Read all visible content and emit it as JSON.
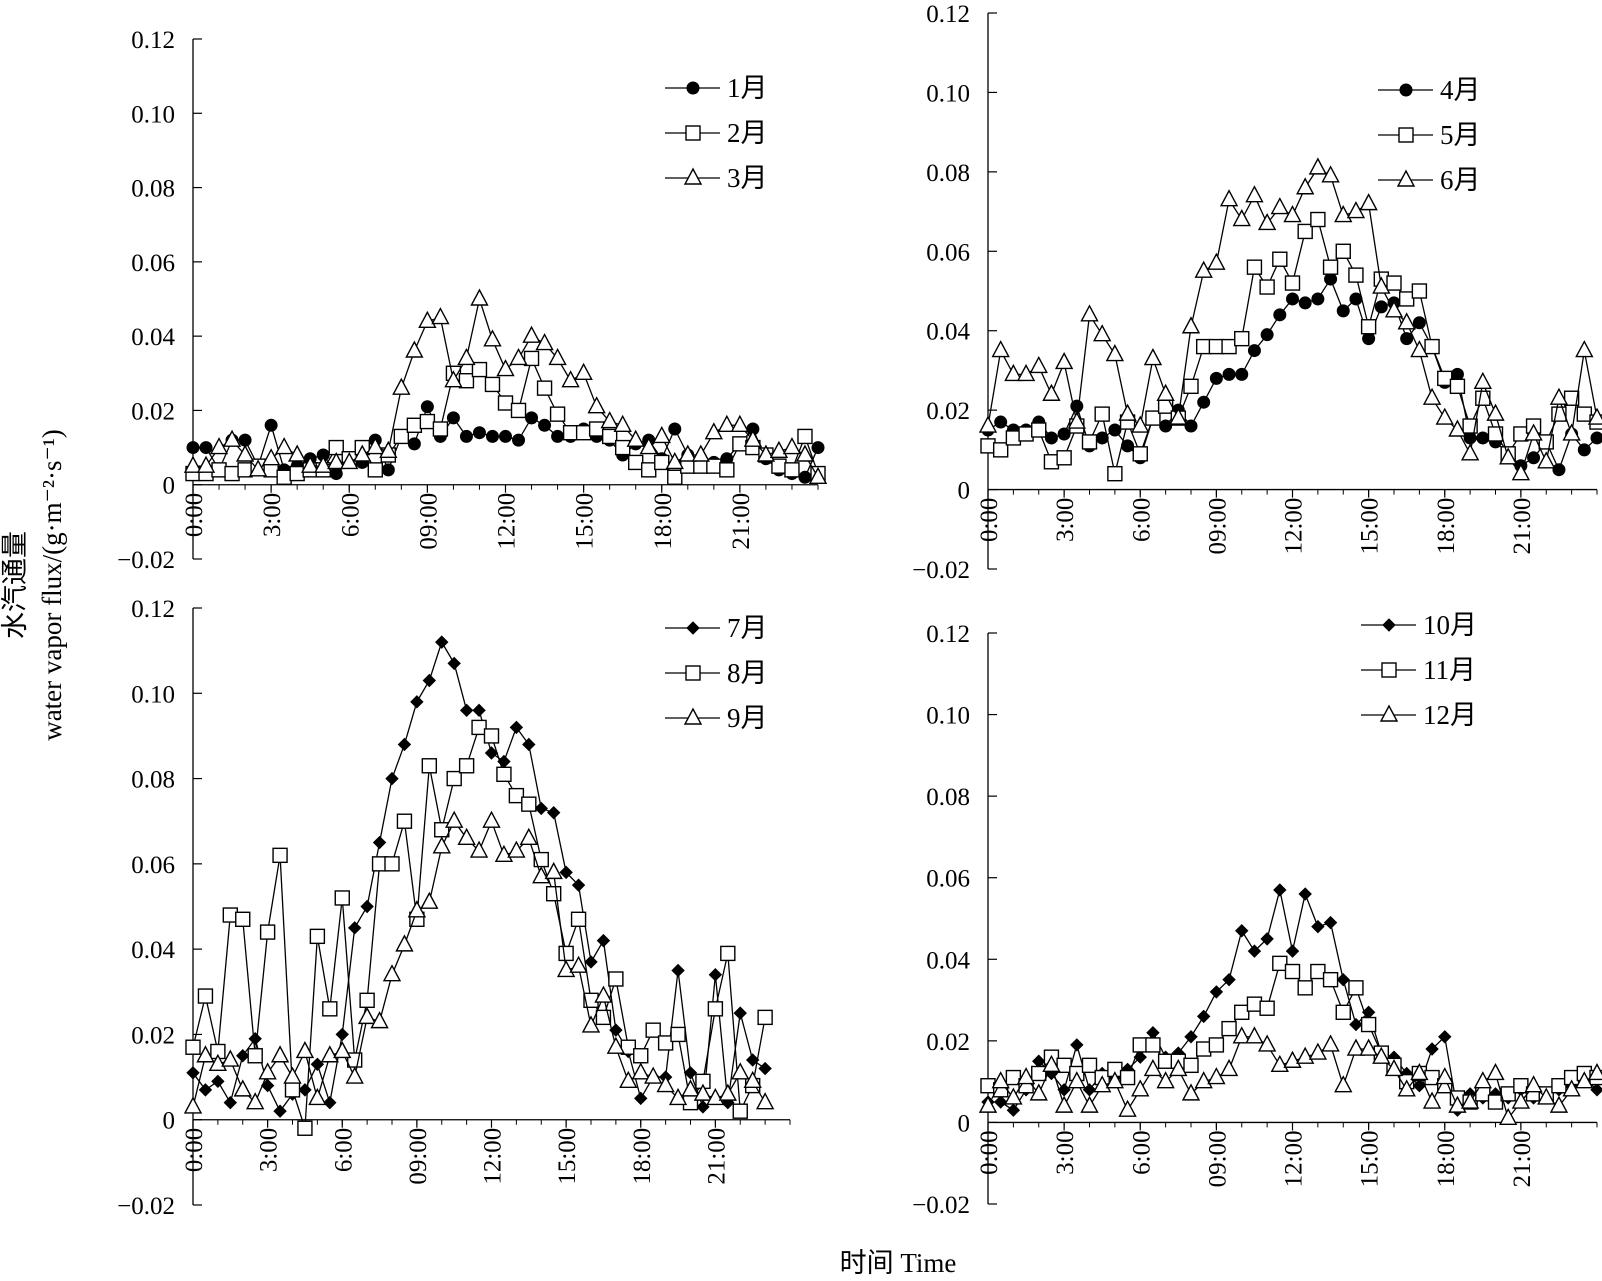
{
  "figure": {
    "ylabel_line1": "水汽通量",
    "ylabel_line2": "water vapor  flux/(g·m⁻²·s⁻¹)",
    "xlabel": "时间 Time"
  },
  "chart_data": [
    {
      "type": "line",
      "panel": "top-left",
      "ylim": [
        -0.02,
        0.12
      ],
      "yticks": [
        "0.12",
        "0.10",
        "0.08",
        "0.06",
        "0.04",
        "0.02",
        "0",
        "−0.02"
      ],
      "xticks": [
        "0:00",
        "3:00",
        "6:00",
        "09:00",
        "12:00",
        "15:00",
        "18:00",
        "21:00"
      ],
      "legend": "top-right",
      "series": [
        {
          "name": "1月",
          "marker": "circle",
          "values": [
            0.01,
            0.01,
            0.004,
            0.012,
            0.012,
            0.005,
            0.016,
            0.004,
            0.005,
            0.007,
            0.008,
            0.003,
            0.006,
            0.006,
            0.012,
            0.004,
            0.013,
            0.011,
            0.021,
            0.013,
            0.018,
            0.013,
            0.014,
            0.013,
            0.013,
            0.012,
            0.018,
            0.016,
            0.013,
            0.013,
            0.015,
            0.013,
            0.012,
            0.008,
            0.011,
            0.012,
            0.007,
            0.015,
            0.008,
            0.007,
            0.006,
            0.007,
            0.011,
            0.015,
            0.007,
            0.004,
            0.003,
            0.002,
            0.01
          ]
        },
        {
          "name": "2月",
          "marker": "square",
          "values": [
            0.003,
            0.003,
            0.004,
            0.003,
            0.004,
            0.005,
            0.004,
            0.002,
            0.003,
            0.004,
            0.004,
            0.01,
            0.007,
            0.01,
            0.004,
            0.008,
            0.013,
            0.016,
            0.017,
            0.015,
            0.03,
            0.028,
            0.031,
            0.027,
            0.022,
            0.02,
            0.034,
            0.026,
            0.019,
            0.014,
            0.014,
            0.015,
            0.013,
            0.01,
            0.006,
            0.004,
            0.006,
            0.002,
            0.005,
            0.005,
            0.005,
            0.004,
            0.011,
            0.01,
            0.008,
            0.005,
            0.004,
            0.013,
            0.003
          ]
        },
        {
          "name": "3月",
          "marker": "triangle",
          "values": [
            0.005,
            0.005,
            0.01,
            0.012,
            0.008,
            0.004,
            0.007,
            0.01,
            0.008,
            0.005,
            0.005,
            0.006,
            0.006,
            0.008,
            0.01,
            0.009,
            0.026,
            0.036,
            0.044,
            0.045,
            0.028,
            0.034,
            0.05,
            0.039,
            0.031,
            0.034,
            0.04,
            0.038,
            0.034,
            0.028,
            0.03,
            0.021,
            0.017,
            0.016,
            0.012,
            0.01,
            0.013,
            0.006,
            0.008,
            0.008,
            0.014,
            0.016,
            0.016,
            0.012,
            0.008,
            0.009,
            0.01,
            0.008,
            0.002
          ]
        }
      ]
    },
    {
      "type": "line",
      "panel": "top-right",
      "ylim": [
        -0.02,
        0.12
      ],
      "yticks": [
        "0.12",
        "0.10",
        "0.08",
        "0.06",
        "0.04",
        "0.02",
        "0",
        "−0.02"
      ],
      "xticks": [
        "0:00",
        "3:00",
        "6:00",
        "09:00",
        "12:00",
        "15:00",
        "18:00",
        "21:00"
      ],
      "legend": "top-right",
      "series": [
        {
          "name": "4月",
          "marker": "circle",
          "values": [
            0.015,
            0.017,
            0.015,
            0.015,
            0.017,
            0.013,
            0.014,
            0.021,
            0.011,
            0.013,
            0.015,
            0.011,
            0.008,
            0.018,
            0.016,
            0.02,
            0.016,
            0.022,
            0.028,
            0.029,
            0.029,
            0.035,
            0.039,
            0.044,
            0.048,
            0.047,
            0.048,
            0.053,
            0.045,
            0.048,
            0.038,
            0.046,
            0.047,
            0.038,
            0.042,
            0.036,
            0.027,
            0.029,
            0.013,
            0.013,
            0.012,
            0.009,
            0.006,
            0.008,
            0.012,
            0.005,
            0.014,
            0.01,
            0.013
          ]
        },
        {
          "name": "5月",
          "marker": "square",
          "values": [
            0.011,
            0.01,
            0.013,
            0.014,
            0.015,
            0.007,
            0.008,
            0.016,
            0.012,
            0.019,
            0.004,
            0.017,
            0.009,
            0.018,
            0.021,
            0.018,
            0.026,
            0.036,
            0.036,
            0.036,
            0.038,
            0.056,
            0.051,
            0.058,
            0.052,
            0.065,
            0.068,
            0.056,
            0.06,
            0.054,
            0.041,
            0.053,
            0.052,
            0.048,
            0.05,
            0.036,
            0.028,
            0.026,
            0.016,
            0.023,
            0.014,
            0.009,
            0.014,
            0.016,
            0.012,
            0.019,
            0.023,
            0.019,
            0.017
          ]
        },
        {
          "name": "6月",
          "marker": "triangle",
          "values": [
            0.016,
            0.035,
            0.029,
            0.029,
            0.031,
            0.024,
            0.032,
            0.017,
            0.044,
            0.039,
            0.034,
            0.019,
            0.016,
            0.033,
            0.024,
            0.018,
            0.041,
            0.055,
            0.057,
            0.073,
            0.068,
            0.074,
            0.067,
            0.071,
            0.069,
            0.076,
            0.081,
            0.079,
            0.069,
            0.07,
            0.072,
            0.051,
            0.045,
            0.042,
            0.035,
            0.023,
            0.018,
            0.015,
            0.009,
            0.027,
            0.019,
            0.008,
            0.004,
            0.014,
            0.007,
            0.023,
            0.014,
            0.035,
            0.018
          ]
        }
      ]
    },
    {
      "type": "line",
      "panel": "bottom-left",
      "ylim": [
        -0.02,
        0.12
      ],
      "yticks": [
        "0.12",
        "0.10",
        "0.08",
        "0.06",
        "0.04",
        "0.02",
        "0",
        "−0.02"
      ],
      "xticks": [
        "0:00",
        "3:00",
        "6:00",
        "09:00",
        "12:00",
        "15:00",
        "18:00",
        "21:00"
      ],
      "legend": "top-right",
      "series": [
        {
          "name": "7月",
          "marker": "diamond",
          "values": [
            0.011,
            0.007,
            0.009,
            0.004,
            0.015,
            0.019,
            0.008,
            0.002,
            0.006,
            0.007,
            0.013,
            0.004,
            0.02,
            0.045,
            0.05,
            0.065,
            0.08,
            0.088,
            0.098,
            0.103,
            0.112,
            0.107,
            0.096,
            0.096,
            0.086,
            0.084,
            0.092,
            0.088,
            0.073,
            0.072,
            0.058,
            0.055,
            0.037,
            0.042,
            0.021,
            0.016,
            0.005,
            0.01,
            0.01,
            0.035,
            0.011,
            0.003,
            0.034,
            0.004,
            0.025,
            0.014,
            0.012
          ]
        },
        {
          "name": "8月",
          "marker": "square",
          "values": [
            0.017,
            0.029,
            0.016,
            0.048,
            0.047,
            0.015,
            0.044,
            0.062,
            0.007,
            -0.002,
            0.043,
            0.026,
            0.052,
            0.014,
            0.028,
            0.06,
            0.06,
            0.07,
            0.047,
            0.083,
            0.068,
            0.08,
            0.083,
            0.092,
            0.09,
            0.081,
            0.076,
            0.074,
            0.061,
            0.053,
            0.039,
            0.047,
            0.028,
            0.024,
            0.033,
            0.017,
            0.015,
            0.021,
            0.018,
            0.02,
            0.004,
            0.009,
            0.026,
            0.039,
            0.002,
            0.008,
            0.024
          ]
        },
        {
          "name": "9月",
          "marker": "triangle",
          "values": [
            0.003,
            0.015,
            0.013,
            0.014,
            0.007,
            0.004,
            0.011,
            0.015,
            0.01,
            0.016,
            0.005,
            0.015,
            0.016,
            0.01,
            0.024,
            0.023,
            0.034,
            0.041,
            0.049,
            0.051,
            0.064,
            0.07,
            0.066,
            0.063,
            0.07,
            0.062,
            0.063,
            0.066,
            0.057,
            0.058,
            0.035,
            0.036,
            0.022,
            0.029,
            0.017,
            0.009,
            0.011,
            0.01,
            0.008,
            0.005,
            0.007,
            0.006,
            0.005,
            0.006,
            0.011,
            0.009,
            0.004
          ]
        }
      ]
    },
    {
      "type": "line",
      "panel": "bottom-right",
      "ylim": [
        -0.02,
        0.12
      ],
      "yticks": [
        "0.12",
        "0.10",
        "0.08",
        "0.06",
        "0.04",
        "0.02",
        "0",
        "−0.02"
      ],
      "xticks": [
        "0:00",
        "3:00",
        "6:00",
        "09:00",
        "12:00",
        "15:00",
        "18:00",
        "21:00"
      ],
      "legend": "top-right",
      "series": [
        {
          "name": "10月",
          "marker": "diamond",
          "values": [
            0.005,
            0.005,
            0.003,
            0.008,
            0.015,
            0.012,
            0.008,
            0.019,
            0.008,
            0.012,
            0.011,
            0.013,
            0.016,
            0.022,
            0.016,
            0.017,
            0.021,
            0.026,
            0.032,
            0.035,
            0.047,
            0.042,
            0.045,
            0.057,
            0.042,
            0.056,
            0.048,
            0.049,
            0.035,
            0.024,
            0.027,
            0.017,
            0.016,
            0.012,
            0.009,
            0.018,
            0.021,
            0.003,
            0.007,
            0.006,
            0.007,
            0.006,
            0.008,
            0.006,
            0.007,
            0.008,
            0.009,
            0.011,
            0.008
          ]
        },
        {
          "name": "11月",
          "marker": "square",
          "values": [
            0.009,
            0.008,
            0.011,
            0.009,
            0.012,
            0.016,
            0.014,
            0.012,
            0.014,
            0.011,
            0.013,
            0.011,
            0.019,
            0.019,
            0.015,
            0.015,
            0.014,
            0.018,
            0.019,
            0.023,
            0.027,
            0.029,
            0.028,
            0.039,
            0.037,
            0.033,
            0.037,
            0.035,
            0.027,
            0.033,
            0.024,
            0.017,
            0.014,
            0.01,
            0.012,
            0.011,
            0.009,
            0.006,
            0.005,
            0.007,
            0.005,
            0.007,
            0.009,
            0.007,
            0.007,
            0.009,
            0.011,
            0.012,
            0.011
          ]
        },
        {
          "name": "12月",
          "marker": "triangle",
          "values": [
            0.004,
            0.01,
            0.006,
            0.011,
            0.007,
            0.014,
            0.004,
            0.01,
            0.004,
            0.009,
            0.01,
            0.003,
            0.008,
            0.013,
            0.01,
            0.013,
            0.007,
            0.01,
            0.011,
            0.013,
            0.021,
            0.021,
            0.019,
            0.014,
            0.015,
            0.016,
            0.017,
            0.019,
            0.009,
            0.018,
            0.018,
            0.016,
            0.013,
            0.008,
            0.012,
            0.005,
            0.011,
            0.004,
            0.005,
            0.01,
            0.012,
            0.001,
            0.005,
            0.009,
            0.006,
            0.004,
            0.008,
            0.01,
            0.012
          ]
        }
      ]
    }
  ]
}
